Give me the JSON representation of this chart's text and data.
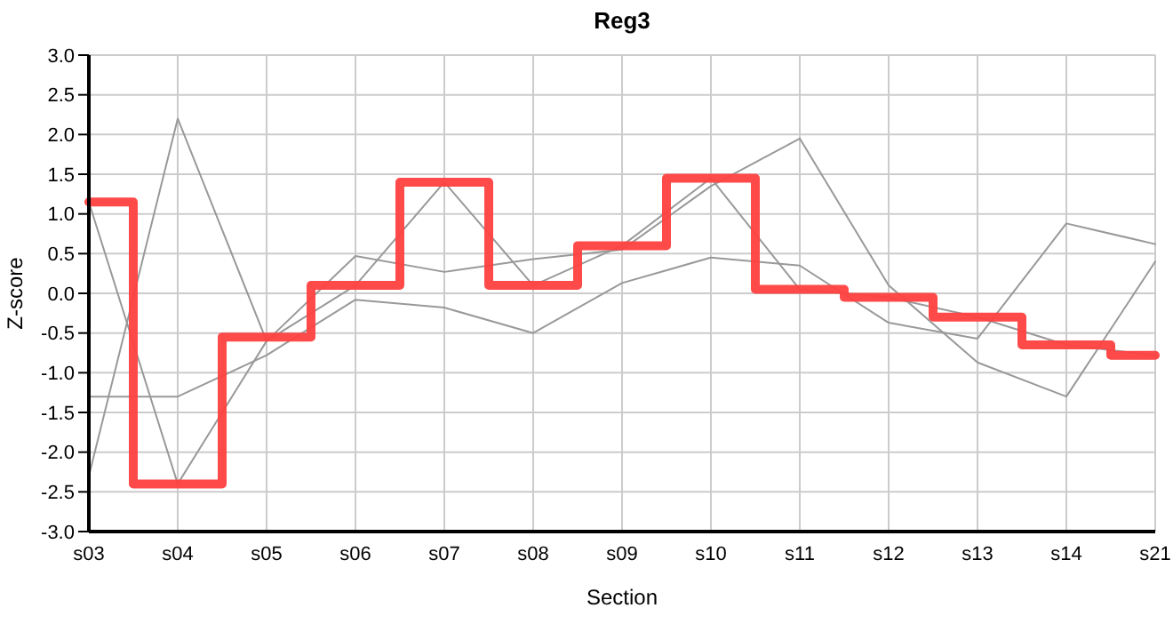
{
  "chart_data": {
    "type": "line",
    "title": "Reg3",
    "xlabel": "Section",
    "ylabel": "Z-score",
    "categories": [
      "s03",
      "s04",
      "s05",
      "s06",
      "s07",
      "s08",
      "s09",
      "s10",
      "s11",
      "s12",
      "s13",
      "s14",
      "s21"
    ],
    "series": [
      {
        "color": "#999999",
        "values": [
          1.15,
          -2.4,
          -0.6,
          0.1,
          1.4,
          0.1,
          0.6,
          1.45,
          0.05,
          -0.05,
          -0.3,
          -0.65,
          -0.78
        ]
      },
      {
        "color": "#999999",
        "values": [
          -2.3,
          2.2,
          -0.6,
          0.47,
          0.27,
          0.43,
          0.55,
          1.35,
          1.95,
          0.1,
          -0.87,
          -1.3,
          0.4
        ]
      },
      {
        "color": "#999999",
        "values": [
          -1.3,
          -1.3,
          -0.78,
          -0.08,
          -0.18,
          -0.5,
          0.13,
          0.45,
          0.35,
          -0.37,
          -0.57,
          0.88,
          0.62
        ]
      },
      {
        "type": "step",
        "color": "#ff4040",
        "values": [
          1.15,
          -2.4,
          -0.55,
          0.1,
          1.4,
          0.1,
          0.6,
          1.45,
          0.05,
          -0.05,
          -0.3,
          -0.65,
          -0.78
        ]
      }
    ],
    "ylim": [
      -3,
      3
    ],
    "yticks": [
      {
        "value": -3,
        "label": "-3.0"
      },
      {
        "value": -2.5,
        "label": "-2.5"
      },
      {
        "value": -2,
        "label": "-2.0"
      },
      {
        "value": -1.5,
        "label": "-1.5"
      },
      {
        "value": -1,
        "label": "-1.0"
      },
      {
        "value": -0.5,
        "label": "-0.5"
      },
      {
        "value": 0,
        "label": "0.0"
      },
      {
        "value": 0.5,
        "label": "0.5"
      },
      {
        "value": 1,
        "label": "1.0"
      },
      {
        "value": 1.5,
        "label": "1.5"
      },
      {
        "value": 2,
        "label": "2.0"
      },
      {
        "value": 2.5,
        "label": "2.5"
      },
      {
        "value": 3,
        "label": "3.0"
      }
    ],
    "grid": true,
    "legend": false,
    "marker": "none",
    "line_style": "solid"
  }
}
